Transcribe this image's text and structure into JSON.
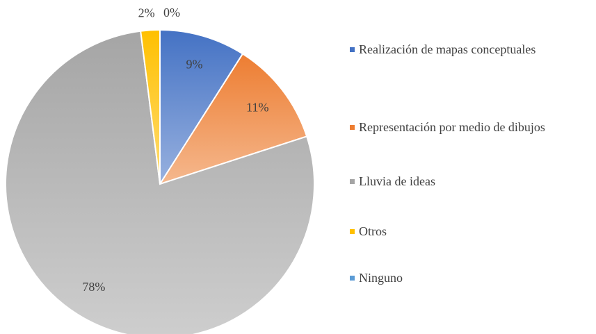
{
  "chart_data": {
    "type": "pie",
    "categories": [
      "Realización de mapas conceptuales",
      "Representación por medio de dibujos",
      "Lluvia de ideas",
      "Otros",
      "Ninguno"
    ],
    "values": [
      9,
      11,
      78,
      2,
      0
    ],
    "value_labels": [
      "9%",
      "11%",
      "78%",
      "2%",
      "0%"
    ],
    "colors": [
      "#4472c4",
      "#ed7d31",
      "#a5a5a5",
      "#ffc000",
      "#5b9bd5"
    ],
    "legend": "right"
  }
}
